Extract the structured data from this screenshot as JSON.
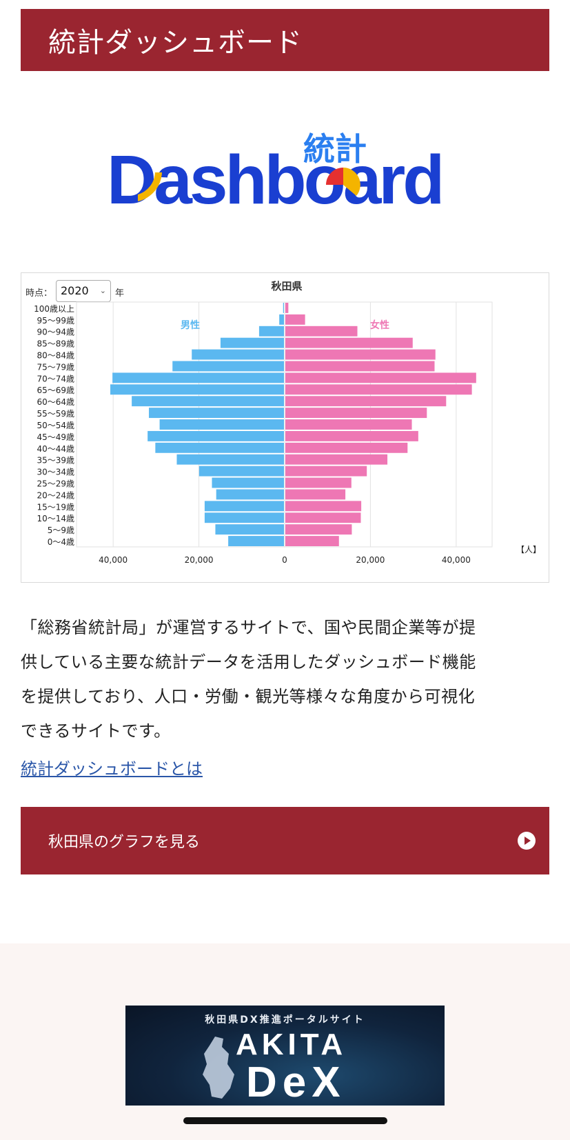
{
  "header": {
    "title": "統計ダッシュボード"
  },
  "logo": {
    "word": "Dashboard",
    "kanji": "統計"
  },
  "chart_controls": {
    "period_label": "時点：",
    "year_value": "2020",
    "year_unit": "年"
  },
  "chart_data": {
    "type": "bar",
    "subtype": "population-pyramid",
    "title": "秋田県",
    "categories": [
      "100歳以上",
      "95〜99歳",
      "90〜94歳",
      "85〜89歳",
      "80〜84歳",
      "75〜79歳",
      "70〜74歳",
      "65〜69歳",
      "60〜64歳",
      "55〜59歳",
      "50〜54歳",
      "45〜49歳",
      "40〜44歳",
      "35〜39歳",
      "30〜34歳",
      "25〜29歳",
      "20〜24歳",
      "15〜19歳",
      "10〜14歳",
      "5〜9歳",
      "0〜4歳"
    ],
    "series": [
      {
        "name": "男性",
        "color": "#5bb8f0",
        "values": [
          200,
          1100,
          5800,
          14800,
          21500,
          26000,
          40000,
          40500,
          35500,
          31500,
          29000,
          31800,
          30000,
          25000,
          19800,
          16800,
          15800,
          18500,
          18500,
          16000,
          13000
        ]
      },
      {
        "name": "女性",
        "color": "#ee77b4",
        "values": [
          700,
          4600,
          16800,
          29700,
          35000,
          34800,
          44500,
          43500,
          37500,
          33000,
          29500,
          31000,
          28500,
          23800,
          19000,
          15400,
          14000,
          17700,
          17600,
          15500,
          12500
        ]
      }
    ],
    "xticks": [
      "40,000",
      "20,000",
      "0",
      "20,000",
      "40,000"
    ],
    "xlim": [
      -50000,
      50000
    ],
    "unit_label": "【人】",
    "grid": true
  },
  "description": {
    "lines": [
      "「総務省統計局」が運営するサイトで、国や民間企業等が提",
      "供している主要な統計データを活用したダッシュボード機能",
      "を提供しており、人口・労働・観光等様々な角度から可視化",
      "できるサイトです。"
    ],
    "link": "統計ダッシュボードとは"
  },
  "graph_button": {
    "label": "秋田県のグラフを見る"
  },
  "banner": {
    "subtitle": "秋田県DX推進ポータルサイト",
    "title": "AKITA",
    "dx": "DeX"
  }
}
